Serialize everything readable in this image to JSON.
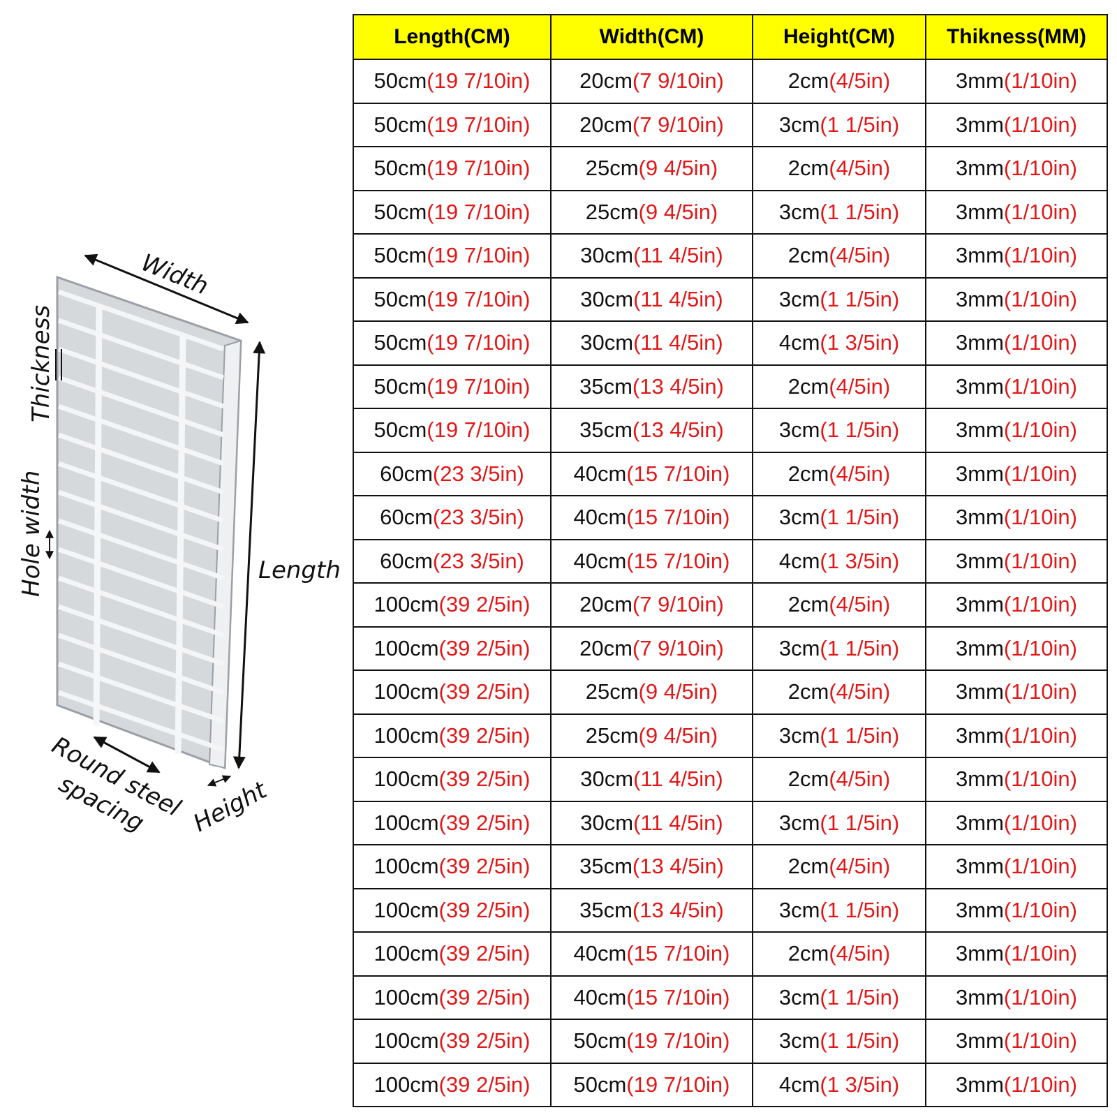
{
  "diagram": {
    "width": "Width",
    "length": "Length",
    "thickness": "Thickness",
    "hole_width": "Hole width",
    "round_steel_spacing": [
      "Round steel",
      "spacing"
    ],
    "height": "Height"
  },
  "table": {
    "header": [
      "Length(CM)",
      "Width(CM)",
      "Height(CM)",
      "Thikness(MM)"
    ],
    "rows": [
      [
        {
          "cm": "50cm",
          "in": "(19 7/10in)"
        },
        {
          "cm": "20cm",
          "in": "(7 9/10in)"
        },
        {
          "cm": "2cm",
          "in": "(4/5in)"
        },
        {
          "cm": "3mm",
          "in": "(1/10in)"
        }
      ],
      [
        {
          "cm": "50cm",
          "in": "(19 7/10in)"
        },
        {
          "cm": "20cm",
          "in": "(7 9/10in)"
        },
        {
          "cm": "3cm",
          "in": "(1 1/5in)"
        },
        {
          "cm": "3mm",
          "in": "(1/10in)"
        }
      ],
      [
        {
          "cm": "50cm",
          "in": "(19 7/10in)"
        },
        {
          "cm": "25cm",
          "in": "(9 4/5in)"
        },
        {
          "cm": "2cm",
          "in": "(4/5in)"
        },
        {
          "cm": "3mm",
          "in": "(1/10in)"
        }
      ],
      [
        {
          "cm": "50cm",
          "in": "(19 7/10in)"
        },
        {
          "cm": "25cm",
          "in": "(9 4/5in)"
        },
        {
          "cm": "3cm",
          "in": "(1 1/5in)"
        },
        {
          "cm": "3mm",
          "in": "(1/10in)"
        }
      ],
      [
        {
          "cm": "50cm",
          "in": "(19 7/10in)"
        },
        {
          "cm": "30cm",
          "in": "(11 4/5in)"
        },
        {
          "cm": "2cm",
          "in": "(4/5in)"
        },
        {
          "cm": "3mm",
          "in": "(1/10in)"
        }
      ],
      [
        {
          "cm": "50cm",
          "in": "(19 7/10in)"
        },
        {
          "cm": "30cm",
          "in": "(11 4/5in)"
        },
        {
          "cm": "3cm",
          "in": "(1 1/5in)"
        },
        {
          "cm": "3mm",
          "in": "(1/10in)"
        }
      ],
      [
        {
          "cm": "50cm",
          "in": "(19 7/10in)"
        },
        {
          "cm": "30cm",
          "in": "(11 4/5in)"
        },
        {
          "cm": "4cm",
          "in": "(1 3/5in)"
        },
        {
          "cm": "3mm",
          "in": "(1/10in)"
        }
      ],
      [
        {
          "cm": "50cm",
          "in": "(19 7/10in)"
        },
        {
          "cm": "35cm",
          "in": "(13 4/5in)"
        },
        {
          "cm": "2cm",
          "in": "(4/5in)"
        },
        {
          "cm": "3mm",
          "in": "(1/10in)"
        }
      ],
      [
        {
          "cm": "50cm",
          "in": "(19 7/10in)"
        },
        {
          "cm": "35cm",
          "in": "(13 4/5in)"
        },
        {
          "cm": "3cm",
          "in": "(1 1/5in)"
        },
        {
          "cm": "3mm",
          "in": "(1/10in)"
        }
      ],
      [
        {
          "cm": "60cm",
          "in": "(23 3/5in)"
        },
        {
          "cm": "40cm",
          "in": "(15 7/10in)"
        },
        {
          "cm": "2cm",
          "in": "(4/5in)"
        },
        {
          "cm": "3mm",
          "in": "(1/10in)"
        }
      ],
      [
        {
          "cm": "60cm",
          "in": "(23 3/5in)"
        },
        {
          "cm": "40cm",
          "in": "(15 7/10in)"
        },
        {
          "cm": "3cm",
          "in": "(1 1/5in)"
        },
        {
          "cm": "3mm",
          "in": "(1/10in)"
        }
      ],
      [
        {
          "cm": "60cm",
          "in": "(23 3/5in)"
        },
        {
          "cm": "40cm",
          "in": "(15 7/10in)"
        },
        {
          "cm": "4cm",
          "in": "(1 3/5in)"
        },
        {
          "cm": "3mm",
          "in": "(1/10in)"
        }
      ],
      [
        {
          "cm": "100cm",
          "in": "(39 2/5in)"
        },
        {
          "cm": "20cm",
          "in": "(7 9/10in)"
        },
        {
          "cm": "2cm",
          "in": "(4/5in)"
        },
        {
          "cm": "3mm",
          "in": "(1/10in)"
        }
      ],
      [
        {
          "cm": "100cm",
          "in": "(39 2/5in)"
        },
        {
          "cm": "20cm",
          "in": "(7 9/10in)"
        },
        {
          "cm": "3cm",
          "in": "(1 1/5in)"
        },
        {
          "cm": "3mm",
          "in": "(1/10in)"
        }
      ],
      [
        {
          "cm": "100cm",
          "in": "(39 2/5in)"
        },
        {
          "cm": "25cm",
          "in": "(9 4/5in)"
        },
        {
          "cm": "2cm",
          "in": "(4/5in)"
        },
        {
          "cm": "3mm",
          "in": "(1/10in)"
        }
      ],
      [
        {
          "cm": "100cm",
          "in": "(39 2/5in)"
        },
        {
          "cm": "25cm",
          "in": "(9 4/5in)"
        },
        {
          "cm": "3cm",
          "in": "(1 1/5in)"
        },
        {
          "cm": "3mm",
          "in": "(1/10in)"
        }
      ],
      [
        {
          "cm": "100cm",
          "in": "(39 2/5in)"
        },
        {
          "cm": "30cm",
          "in": "(11 4/5in)"
        },
        {
          "cm": "2cm",
          "in": "(4/5in)"
        },
        {
          "cm": "3mm",
          "in": "(1/10in)"
        }
      ],
      [
        {
          "cm": "100cm",
          "in": "(39 2/5in)"
        },
        {
          "cm": "30cm",
          "in": "(11 4/5in)"
        },
        {
          "cm": "3cm",
          "in": "(1 1/5in)"
        },
        {
          "cm": "3mm",
          "in": "(1/10in)"
        }
      ],
      [
        {
          "cm": "100cm",
          "in": "(39 2/5in)"
        },
        {
          "cm": "35cm",
          "in": "(13 4/5in)"
        },
        {
          "cm": "2cm",
          "in": "(4/5in)"
        },
        {
          "cm": "3mm",
          "in": "(1/10in)"
        }
      ],
      [
        {
          "cm": "100cm",
          "in": "(39 2/5in)"
        },
        {
          "cm": "35cm",
          "in": "(13 4/5in)"
        },
        {
          "cm": "3cm",
          "in": "(1 1/5in)"
        },
        {
          "cm": "3mm",
          "in": "(1/10in)"
        }
      ],
      [
        {
          "cm": "100cm",
          "in": "(39 2/5in)"
        },
        {
          "cm": "40cm",
          "in": "(15 7/10in)"
        },
        {
          "cm": "2cm",
          "in": "(4/5in)"
        },
        {
          "cm": "3mm",
          "in": "(1/10in)"
        }
      ],
      [
        {
          "cm": "100cm",
          "in": "(39 2/5in)"
        },
        {
          "cm": "40cm",
          "in": "(15 7/10in)"
        },
        {
          "cm": "3cm",
          "in": "(1 1/5in)"
        },
        {
          "cm": "3mm",
          "in": "(1/10in)"
        }
      ],
      [
        {
          "cm": "100cm",
          "in": "(39 2/5in)"
        },
        {
          "cm": "50cm",
          "in": "(19 7/10in)"
        },
        {
          "cm": "3cm",
          "in": "(1 1/5in)"
        },
        {
          "cm": "3mm",
          "in": "(1/10in)"
        }
      ],
      [
        {
          "cm": "100cm",
          "in": "(39 2/5in)"
        },
        {
          "cm": "50cm",
          "in": "(19 7/10in)"
        },
        {
          "cm": "4cm",
          "in": "(1 3/5in)"
        },
        {
          "cm": "3mm",
          "in": "(1/10in)"
        }
      ]
    ]
  }
}
